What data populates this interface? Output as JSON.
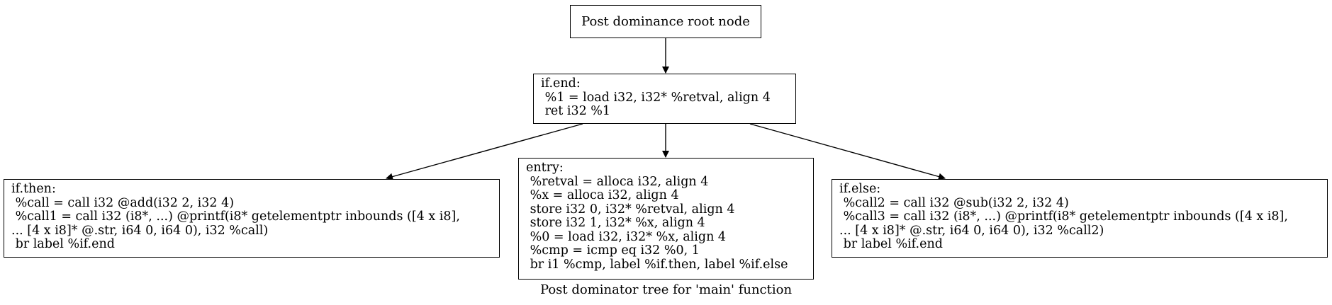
{
  "root": {
    "label": "Post dominance root node"
  },
  "if_end": {
    "lines": [
      "if.end:",
      " %1 = load i32, i32* %retval, align 4",
      " ret i32 %1"
    ]
  },
  "if_then": {
    "lines": [
      "if.then:",
      " %call = call i32 @add(i32 2, i32 4)",
      " %call1 = call i32 (i8*, ...) @printf(i8* getelementptr inbounds ([4 x i8],",
      "... [4 x i8]* @.str, i64 0, i64 0), i32 %call)",
      " br label %if.end"
    ]
  },
  "entry": {
    "lines": [
      "entry:",
      " %retval = alloca i32, align 4",
      " %x = alloca i32, align 4",
      " store i32 0, i32* %retval, align 4",
      " store i32 1, i32* %x, align 4",
      " %0 = load i32, i32* %x, align 4",
      " %cmp = icmp eq i32 %0, 1",
      " br i1 %cmp, label %if.then, label %if.else"
    ]
  },
  "if_else": {
    "lines": [
      "if.else:",
      " %call2 = call i32 @sub(i32 2, i32 4)",
      " %call3 = call i32 (i8*, ...) @printf(i8* getelementptr inbounds ([4 x i8],",
      "... [4 x i8]* @.str, i64 0, i64 0), i32 %call2)",
      " br label %if.end"
    ]
  },
  "caption": "Post dominator tree for 'main' function"
}
